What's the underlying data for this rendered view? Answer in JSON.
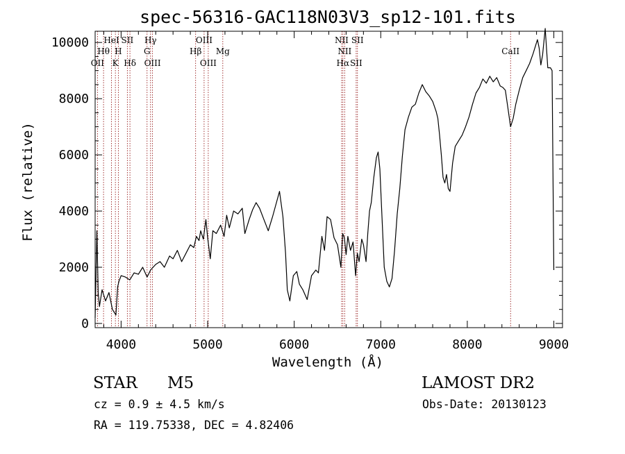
{
  "chart_data": {
    "type": "line",
    "title": "spec-56316-GAC118N03V3_sp12-101.fits",
    "xlabel": "Wavelength (Å)",
    "ylabel": "Flux (relative)",
    "xlim": [
      3700,
      9100
    ],
    "ylim": [
      -150,
      10400
    ],
    "xticks": [
      4000,
      5000,
      6000,
      7000,
      8000,
      9000
    ],
    "yticks": [
      0,
      2000,
      4000,
      6000,
      8000,
      10000
    ],
    "grid": false,
    "series": [
      {
        "color": "#000000",
        "x": [
          3700,
          3720,
          3735,
          3750,
          3780,
          3820,
          3860,
          3900,
          3940,
          3960,
          3975,
          4000,
          4050,
          4100,
          4150,
          4200,
          4250,
          4300,
          4340,
          4400,
          4450,
          4500,
          4560,
          4600,
          4650,
          4700,
          4750,
          4800,
          4840,
          4870,
          4900,
          4920,
          4950,
          4980,
          5000,
          5030,
          5060,
          5100,
          5150,
          5190,
          5220,
          5250,
          5300,
          5350,
          5400,
          5430,
          5480,
          5520,
          5560,
          5600,
          5650,
          5700,
          5750,
          5790,
          5830,
          5870,
          5900,
          5920,
          5950,
          5990,
          6030,
          6060,
          6100,
          6150,
          6200,
          6250,
          6280,
          6320,
          6350,
          6380,
          6420,
          6460,
          6500,
          6540,
          6560,
          6580,
          6600,
          6620,
          6650,
          6680,
          6710,
          6730,
          6750,
          6780,
          6800,
          6830,
          6850,
          6870,
          6890,
          6920,
          6950,
          6970,
          6990,
          7010,
          7040,
          7070,
          7100,
          7130,
          7160,
          7190,
          7220,
          7250,
          7280,
          7320,
          7360,
          7400,
          7440,
          7480,
          7520,
          7560,
          7600,
          7640,
          7660,
          7680,
          7700,
          7720,
          7740,
          7760,
          7780,
          7800,
          7830,
          7860,
          7900,
          7940,
          7980,
          8020,
          8060,
          8100,
          8140,
          8180,
          8220,
          8260,
          8300,
          8340,
          8380,
          8410,
          8440,
          8470,
          8500,
          8530,
          8560,
          8600,
          8640,
          8680,
          8720,
          8760,
          8790,
          8810,
          8830,
          8850,
          8870,
          8900,
          8930,
          8960,
          8980,
          9000
        ],
        "y": [
          200,
          3300,
          1100,
          600,
          1200,
          800,
          1100,
          500,
          300,
          1300,
          1500,
          1700,
          1650,
          1550,
          1800,
          1750,
          2000,
          1650,
          1900,
          2100,
          2200,
          2000,
          2400,
          2300,
          2600,
          2200,
          2500,
          2800,
          2700,
          3100,
          2950,
          3300,
          3000,
          3700,
          3050,
          2300,
          3300,
          3200,
          3500,
          3100,
          3850,
          3400,
          4000,
          3900,
          4100,
          3200,
          3700,
          4050,
          4300,
          4100,
          3700,
          3300,
          3800,
          4250,
          4700,
          3800,
          2500,
          1200,
          800,
          1700,
          1850,
          1400,
          1200,
          850,
          1700,
          1900,
          1800,
          3100,
          2600,
          3800,
          3700,
          3050,
          2800,
          2000,
          3200,
          3050,
          2450,
          3100,
          2600,
          2900,
          1700,
          2500,
          2200,
          3000,
          2800,
          2200,
          3200,
          4000,
          4300,
          5200,
          5900,
          6100,
          5500,
          4100,
          2000,
          1500,
          1300,
          1600,
          2600,
          3900,
          4800,
          5950,
          6900,
          7350,
          7700,
          7800,
          8200,
          8500,
          8250,
          8100,
          7900,
          7550,
          7300,
          6700,
          6000,
          5200,
          5000,
          5300,
          4800,
          4700,
          5700,
          6300,
          6500,
          6700,
          7000,
          7350,
          7800,
          8200,
          8400,
          8700,
          8550,
          8800,
          8600,
          8750,
          8450,
          8400,
          8300,
          7650,
          7000,
          7300,
          7800,
          8300,
          8750,
          9000,
          9250,
          9600,
          9900,
          10100,
          9800,
          9200,
          9550,
          10500,
          9100,
          9100,
          9000,
          1900
        ]
      }
    ],
    "lines": [
      {
        "wavelength": 3727,
        "label": "OII",
        "row": 3
      },
      {
        "wavelength": 3797,
        "label": "Hθ",
        "row": 2
      },
      {
        "wavelength": 3889,
        "label": "HeI",
        "row": 1
      },
      {
        "wavelength": 3934,
        "label": "K",
        "row": 3
      },
      {
        "wavelength": 3968,
        "label": "H",
        "row": 2
      },
      {
        "wavelength": 4072,
        "label": "SII",
        "row": 1
      },
      {
        "wavelength": 4102,
        "label": "Hδ",
        "row": 3
      },
      {
        "wavelength": 4300,
        "label": "G",
        "row": 2
      },
      {
        "wavelength": 4340,
        "label": "Hγ",
        "row": 1
      },
      {
        "wavelength": 4363,
        "label": "OIII",
        "row": 3
      },
      {
        "wavelength": 4861,
        "label": "Hβ",
        "row": 2
      },
      {
        "wavelength": 4959,
        "label": "OIII",
        "row": 1
      },
      {
        "wavelength": 5007,
        "label": "OIII",
        "row": 3
      },
      {
        "wavelength": 5175,
        "label": "Mg",
        "row": 2
      },
      {
        "wavelength": 6548,
        "label": "NII",
        "row": 1
      },
      {
        "wavelength": 6563,
        "label": "Hα",
        "row": 3
      },
      {
        "wavelength": 6583,
        "label": "NII",
        "row": 2
      },
      {
        "wavelength": 6716,
        "label": "SII",
        "row": 3
      },
      {
        "wavelength": 6731,
        "label": "SII",
        "row": 1
      },
      {
        "wavelength": 8500,
        "label": "CaII",
        "row": 2
      }
    ]
  },
  "info": {
    "class_label": "STAR",
    "subclass": "M5",
    "redshift": "cz = 0.9 ± 4.5 km/s",
    "coordinates": "RA = 119.75338, DEC =   4.82406",
    "survey": "LAMOST DR2",
    "obs_date": "Obs-Date: 20130123"
  },
  "colors": {
    "spectrum": "#000000",
    "line_markers": "#8b0000",
    "background": "#ffffff"
  }
}
